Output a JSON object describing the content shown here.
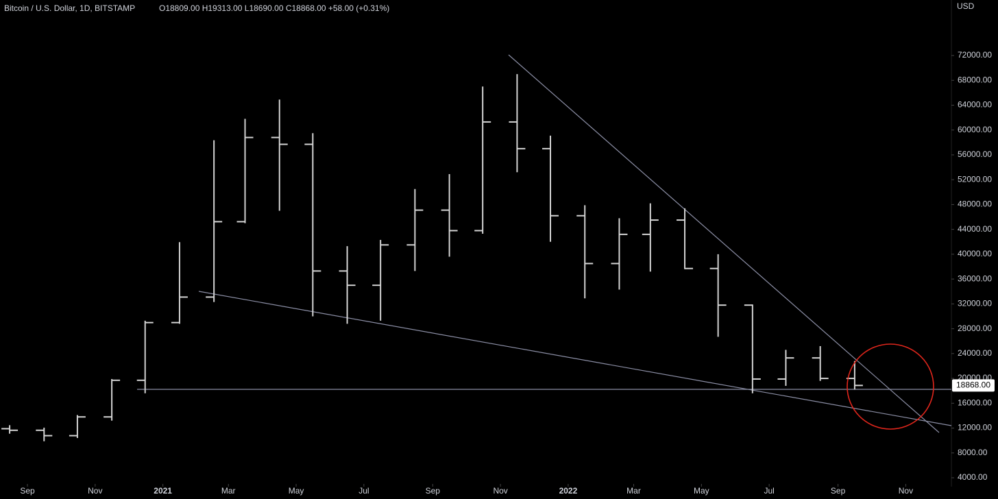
{
  "chart_data": {
    "type": "ohlc",
    "title": "Bitcoin / U.S. Dollar, 1D, BITSTAMP",
    "ohlc_text": "O18809.00  H19313.00  L18690.00  C18868.00  +58.00 (+0.31%)",
    "currency": "USD",
    "color": "#d4d4d4",
    "last_price": 18868,
    "last_price_label": "18868.00",
    "x": [
      "2020-08",
      "2020-09",
      "2020-10",
      "2020-11",
      "2020-12",
      "2021-01",
      "2021-02",
      "2021-03",
      "2021-04",
      "2021-05",
      "2021-06",
      "2021-07",
      "2021-08",
      "2021-09",
      "2021-10",
      "2021-11",
      "2021-12",
      "2022-01",
      "2022-02",
      "2022-03",
      "2022-04",
      "2022-05",
      "2022-06",
      "2022-07",
      "2022-08",
      "2022-09"
    ],
    "open": [
      11900,
      11650,
      10780,
      13800,
      19700,
      28990,
      33100,
      45240,
      58800,
      57700,
      37300,
      35000,
      41500,
      47100,
      43800,
      61300,
      57000,
      46200,
      38500,
      43200,
      45500,
      37700,
      31800,
      19900,
      23300,
      20000
    ],
    "high": [
      12470,
      12070,
      14100,
      19900,
      29300,
      41950,
      58350,
      61800,
      64900,
      59500,
      41300,
      42300,
      50500,
      52900,
      67000,
      69000,
      59100,
      47900,
      45800,
      48200,
      47400,
      40000,
      31900,
      24600,
      25200,
      22800
    ],
    "low": [
      11100,
      9880,
      10400,
      13200,
      17600,
      28800,
      32300,
      45000,
      47000,
      30000,
      28800,
      29300,
      37300,
      39600,
      43300,
      53200,
      42000,
      32900,
      34300,
      37200,
      37600,
      26700,
      17600,
      18800,
      19600,
      18200
    ],
    "close": [
      11650,
      10780,
      13800,
      19700,
      28990,
      33100,
      45240,
      58800,
      57700,
      37300,
      35000,
      41500,
      47100,
      43800,
      61300,
      57000,
      46200,
      38500,
      43200,
      45500,
      37700,
      31800,
      19900,
      23300,
      20000,
      18868
    ],
    "ylim": [
      580,
      80940
    ],
    "yticks": [
      {
        "value": 4000,
        "label": "4000.00"
      },
      {
        "value": 8000,
        "label": "8000.00"
      },
      {
        "value": 12000,
        "label": "12000.00"
      },
      {
        "value": 16000,
        "label": "16000.00"
      },
      {
        "value": 20000,
        "label": "20000.00"
      },
      {
        "value": 24000,
        "label": "24000.00"
      },
      {
        "value": 28000,
        "label": "28000.00"
      },
      {
        "value": 32000,
        "label": "32000.00"
      },
      {
        "value": 36000,
        "label": "36000.00"
      },
      {
        "value": 40000,
        "label": "40000.00"
      },
      {
        "value": 44000,
        "label": "44000.00"
      },
      {
        "value": 48000,
        "label": "48000.00"
      },
      {
        "value": 52000,
        "label": "52000.00"
      },
      {
        "value": 56000,
        "label": "56000.00"
      },
      {
        "value": 60000,
        "label": "60000.00"
      },
      {
        "value": 64000,
        "label": "64000.00"
      },
      {
        "value": 68000,
        "label": "68000.00"
      },
      {
        "value": 72000,
        "label": "72000.00"
      }
    ],
    "xticks": [
      {
        "value": "2020-09",
        "label": "Sep"
      },
      {
        "value": "2020-11",
        "label": "Nov"
      },
      {
        "value": "2021-01",
        "label": "2021"
      },
      {
        "value": "2021-03",
        "label": "Mar"
      },
      {
        "value": "2021-05",
        "label": "May"
      },
      {
        "value": "2021-07",
        "label": "Jul"
      },
      {
        "value": "2021-09",
        "label": "Sep"
      },
      {
        "value": "2021-11",
        "label": "Nov"
      },
      {
        "value": "2022-01",
        "label": "2022"
      },
      {
        "value": "2022-03",
        "label": "Mar"
      },
      {
        "value": "2022-05",
        "label": "May"
      },
      {
        "value": "2022-07",
        "label": "Jul"
      },
      {
        "value": "2022-09",
        "label": "Sep"
      },
      {
        "value": "2022-11",
        "label": "Nov"
      }
    ]
  }
}
